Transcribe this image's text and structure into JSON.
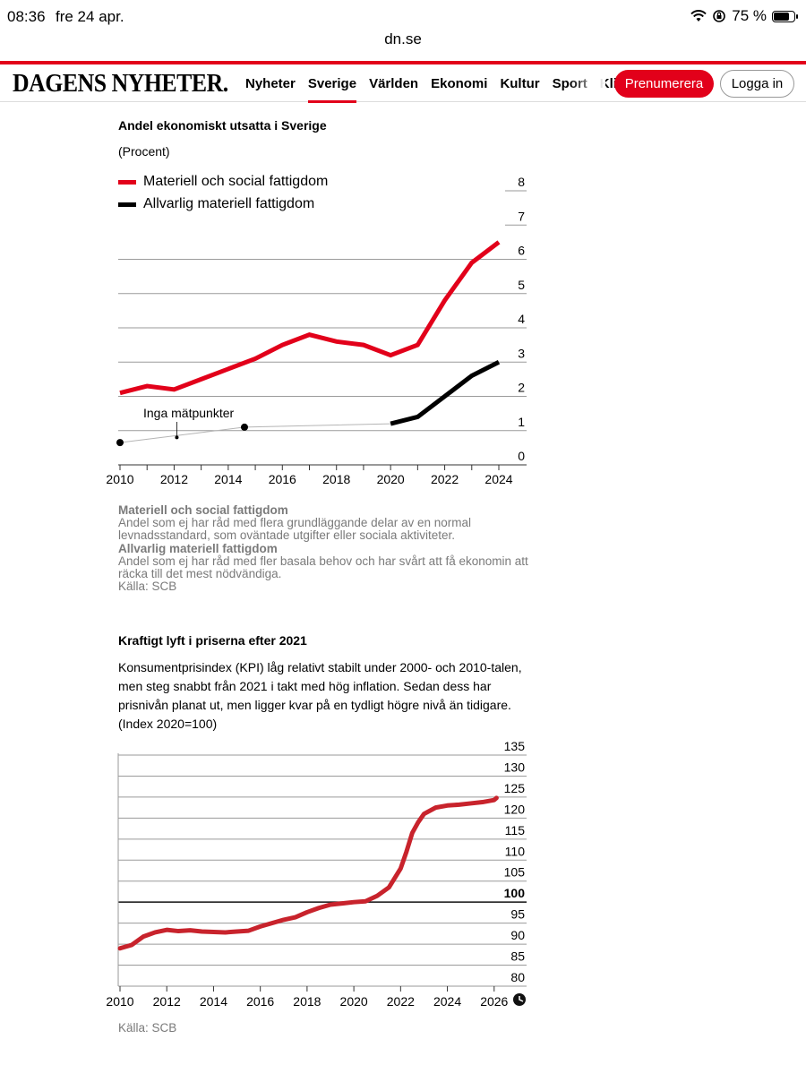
{
  "status_bar": {
    "time": "08:36",
    "date": "fre 24 apr.",
    "battery": "75 %"
  },
  "browser": {
    "url": "dn.se"
  },
  "site": {
    "logo": "DAGENS NYHETER.",
    "nav": [
      "Nyheter",
      "Sverige",
      "Världen",
      "Ekonomi",
      "Kultur",
      "Sport",
      "Klim"
    ],
    "active_nav": "Sverige",
    "subscribe_label": "Prenumerera",
    "login_label": "Logga in",
    "accent": "#e2001a"
  },
  "chart1": {
    "title": "Andel ekonomiskt utsatta i Sverige",
    "unit": "(Procent)",
    "annotation": "Inga mätpunkter",
    "notes": [
      {
        "heading": "Materiell och social fattigdom",
        "text": "Andel som ej har råd med flera grundläggande delar av en normal levnadsstandard, som oväntade utgifter eller sociala aktiviteter."
      },
      {
        "heading": "Allvarlig materiell fattigdom",
        "text": "Andel som ej har råd med fler basala behov och har svårt att få ekonomin att räcka till det mest nödvändiga."
      }
    ],
    "source": "Källa: SCB"
  },
  "chart2": {
    "title": "Kraftigt lyft i priserna efter 2021",
    "description": "Konsumentprisindex (KPI) låg relativt stabilt under 2000- och 2010-talen, men steg snabbt från 2021 i takt med hög inflation. Sedan dess har prisnivån planat ut, men ligger kvar på en tydligt högre nivå än tidigare. (Index 2020=100)",
    "source": "Källa: SCB"
  },
  "chart_data": [
    {
      "type": "line",
      "title": "Andel ekonomiskt utsatta i Sverige",
      "ylabel": "(Procent)",
      "ylim": [
        0,
        8
      ],
      "yticks": [
        "0",
        "1",
        "2",
        "3",
        "4",
        "5",
        "6",
        "7",
        "8"
      ],
      "xlim": [
        2010,
        2024
      ],
      "xticks": [
        "2010",
        "2012",
        "2014",
        "2016",
        "2018",
        "2020",
        "2022",
        "2024"
      ],
      "grid": true,
      "legend_position": "top-left",
      "series": [
        {
          "name": "Materiell och social fattigdom",
          "color": "#e2001a",
          "x": [
            2010,
            2011,
            2012,
            2013,
            2014,
            2015,
            2016,
            2017,
            2018,
            2019,
            2020,
            2021,
            2022,
            2023,
            2024
          ],
          "y": [
            2.1,
            2.3,
            2.2,
            2.5,
            2.8,
            3.1,
            3.5,
            3.8,
            3.6,
            3.5,
            3.2,
            3.5,
            4.8,
            5.9,
            6.5
          ]
        },
        {
          "name": "Allvarlig materiell fattigdom",
          "color": "#000000",
          "x": [
            2020,
            2021,
            2022,
            2023,
            2024
          ],
          "y": [
            1.2,
            1.4,
            2.0,
            2.6,
            3.0
          ]
        }
      ],
      "gap_points": [
        {
          "x": 2010,
          "y": 0.65
        },
        {
          "x": 2014.6,
          "y": 1.1
        },
        {
          "x": 2020,
          "y": 1.2
        }
      ]
    },
    {
      "type": "line",
      "title": "Kraftigt lyft i priserna efter 2021",
      "ylabel": "(Index 2020=100)",
      "ylim": [
        80,
        135
      ],
      "yticks": [
        "80",
        "85",
        "90",
        "95",
        "100",
        "105",
        "110",
        "115",
        "120",
        "125",
        "130",
        "135"
      ],
      "xlim": [
        2010,
        2026.2
      ],
      "xticks": [
        "2010",
        "2012",
        "2014",
        "2016",
        "2018",
        "2020",
        "2022",
        "2024",
        "2026"
      ],
      "grid": true,
      "series": [
        {
          "name": "KPI",
          "color": "#c8232c",
          "x": [
            2010,
            2010.5,
            2011,
            2011.5,
            2012,
            2012.5,
            2013,
            2013.5,
            2014,
            2014.5,
            2015,
            2015.5,
            2016,
            2016.5,
            2017,
            2017.5,
            2018,
            2018.5,
            2019,
            2019.5,
            2020,
            2020.5,
            2021,
            2021.5,
            2022,
            2022.25,
            2022.5,
            2022.75,
            2023,
            2023.5,
            2024,
            2024.5,
            2025,
            2025.5,
            2026,
            2026.1
          ],
          "y": [
            89,
            89.8,
            91.8,
            92.8,
            93.4,
            93.1,
            93.3,
            93.0,
            92.9,
            92.8,
            93.0,
            93.2,
            94.2,
            95.0,
            95.8,
            96.4,
            97.6,
            98.6,
            99.4,
            99.7,
            100,
            100.2,
            101.5,
            103.5,
            108,
            112,
            116.5,
            119,
            121,
            122.5,
            123,
            123.2,
            123.5,
            123.8,
            124.3,
            124.8
          ]
        }
      ]
    }
  ]
}
